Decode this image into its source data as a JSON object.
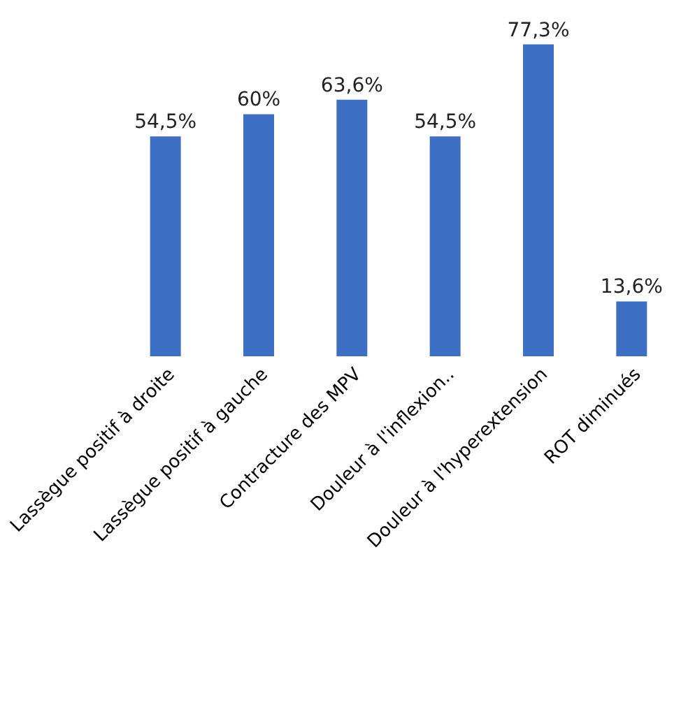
{
  "chart_data": {
    "type": "bar",
    "categories": [
      "Lassègue positif à droite",
      "Lassègue positif à gauche",
      "Contracture des MPV",
      "Douleur à l'inflexion..",
      "Douleur à l'hyperextension",
      "ROT diminués"
    ],
    "values": [
      54.5,
      60,
      63.6,
      54.5,
      77.3,
      13.6
    ],
    "value_labels": [
      "54,5%",
      "60%",
      "63,6%",
      "54,5%",
      "77,3%",
      "13,6%"
    ],
    "color": "#3d6fc4"
  }
}
